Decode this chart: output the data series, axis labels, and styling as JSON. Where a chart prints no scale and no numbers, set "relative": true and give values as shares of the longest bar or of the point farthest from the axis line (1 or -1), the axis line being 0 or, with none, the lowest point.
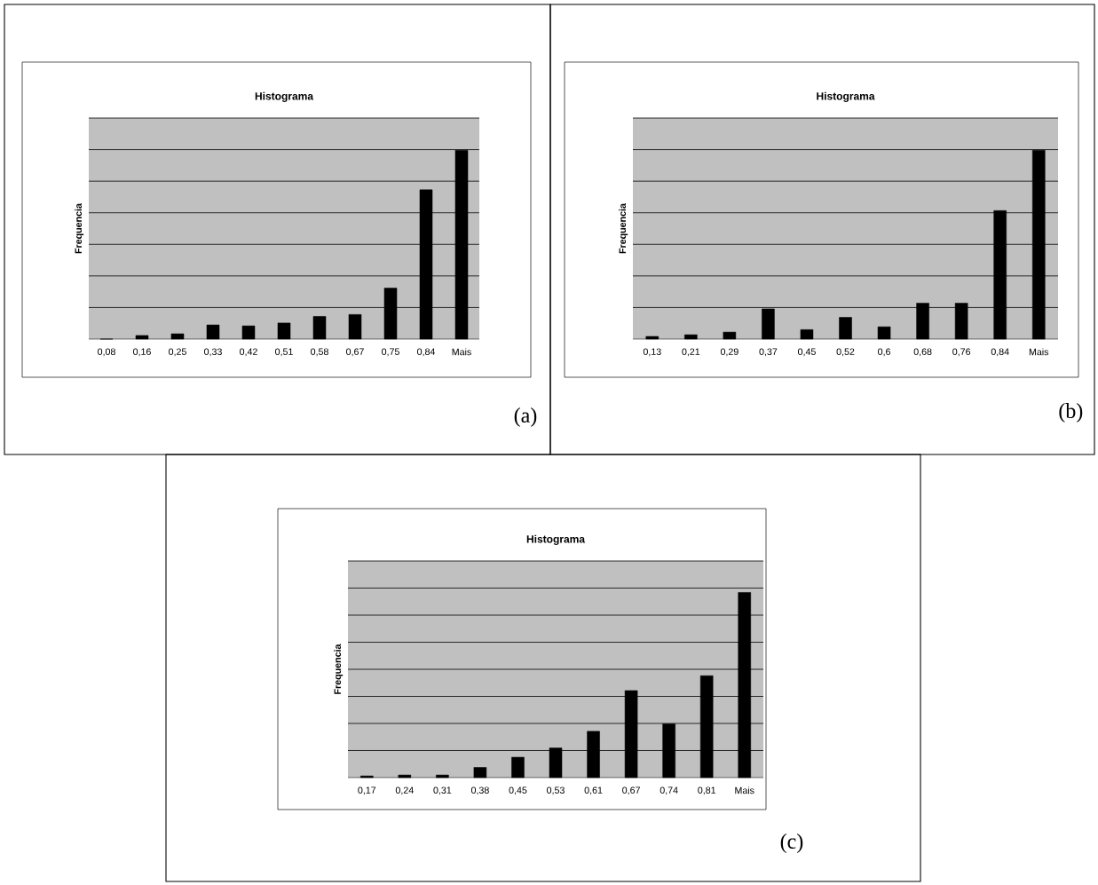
{
  "chart_data": [
    {
      "type": "bar",
      "title": "Histograma",
      "ylabel": "Frequencia",
      "categories": [
        "0,08",
        "0,16",
        "0,25",
        "0,33",
        "0,42",
        "0,51",
        "0,58",
        "0,67",
        "0,75",
        "0,84",
        "Mais"
      ],
      "values": [
        0,
        0.019,
        0.028,
        0.075,
        0.07,
        0.085,
        0.12,
        0.13,
        0.27,
        0.79,
        1
      ],
      "color": "#000000",
      "relative": true,
      "grid": "y",
      "annotations": [
        "(a)"
      ]
    },
    {
      "type": "bar",
      "title": "Histograma",
      "ylabel": "Frequencia",
      "categories": [
        "0,13",
        "0,21",
        "0,29",
        "0,37",
        "0,45",
        "0,52",
        "0,6",
        "0,68",
        "0,76",
        "0,84",
        "Mais"
      ],
      "values": [
        0.014,
        0.023,
        0.037,
        0.16,
        0.05,
        0.115,
        0.065,
        0.19,
        0.19,
        0.68,
        1
      ],
      "color": "#000000",
      "relative": true,
      "grid": "y",
      "annotations": [
        "(b)"
      ]
    },
    {
      "type": "bar",
      "title": "Histograma",
      "ylabel": "Frequencia",
      "categories": [
        "0,17",
        "0,24",
        "0,31",
        "0,38",
        "0,45",
        "0,53",
        "0,61",
        "0,67",
        "0,74",
        "0,81",
        "Mais"
      ],
      "values": [
        0.009,
        0.014,
        0.014,
        0.055,
        0.11,
        0.16,
        0.25,
        0.47,
        0.29,
        0.55,
        1
      ],
      "color": "#000000",
      "relative": true,
      "grid": "y",
      "annotations": [
        "(c)"
      ]
    }
  ]
}
